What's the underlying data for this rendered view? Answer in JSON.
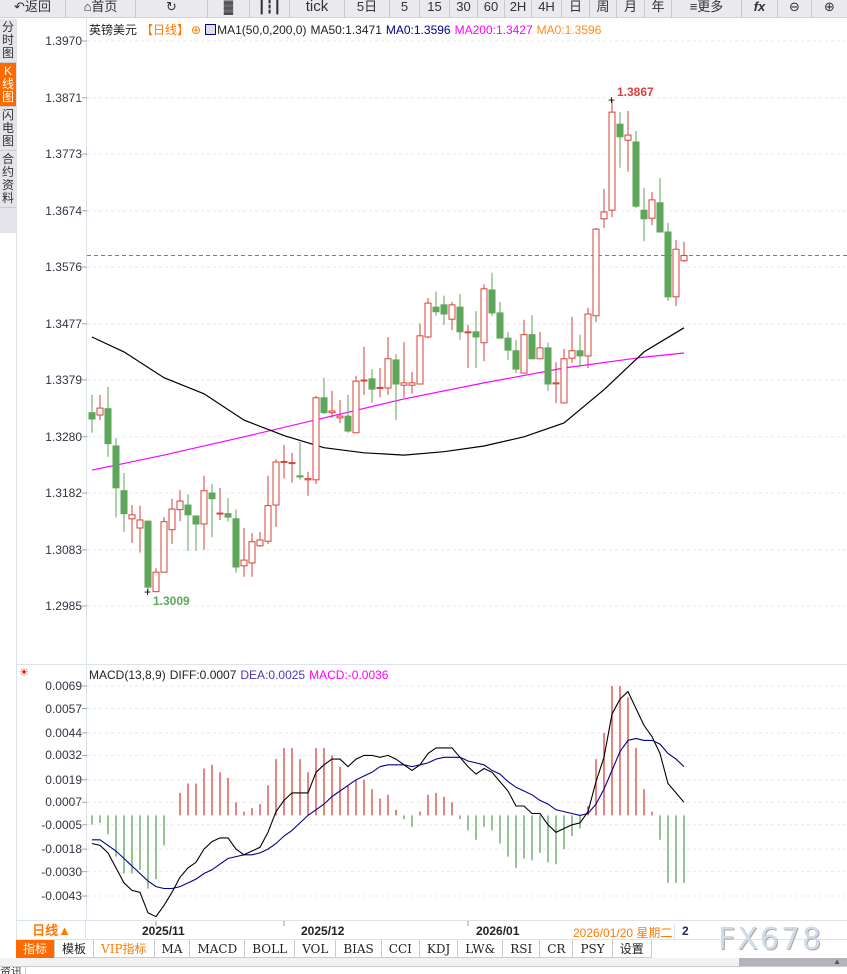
{
  "toolbar": {
    "back": "返回",
    "home": "首页",
    "refresh_icon": "refresh-icon",
    "tick": "tick",
    "periods": [
      "5日",
      "5",
      "15",
      "30",
      "60",
      "2H",
      "4H",
      "日",
      "周",
      "月",
      "年"
    ],
    "more": "更多",
    "fx": "fx"
  },
  "side_tabs": [
    "分时图",
    "K线图",
    "闪电图",
    "合约资料"
  ],
  "legend": {
    "symbol": "英镑美元",
    "period": "【日线】",
    "indicator": "MA1(50,0,200,0)",
    "ma50": "MA50:1.3471",
    "ma0a": "MA0:1.3596",
    "ma200": "MA200:1.3427",
    "ma0b": "MA0:1.3596"
  },
  "macd_legend": {
    "name": "MACD(13,8,9)",
    "diff": "DIFF:0.0007",
    "dea": "DEA:0.0025",
    "macd": "MACD:-0.0036"
  },
  "annotations": {
    "high": "1.3867",
    "low": "1.3009"
  },
  "colors": {
    "up": "#d9413a",
    "down": "#5ea65a",
    "ma50": "#000000",
    "ma200": "#ff00ff",
    "dea": "#00008b",
    "accent": "#ff6a00",
    "last_price": "#1e90ff"
  },
  "date_axis": {
    "period": "日线▲",
    "labels": [
      "2025/11",
      "2025/12",
      "2026/01"
    ],
    "cursor_date": "2026/01/20 星期二",
    "cursor_extra": "2"
  },
  "bottom_tabs": [
    "指标",
    "模板",
    "VIP指标",
    "MA",
    "MACD",
    "BOLL",
    "VOL",
    "BIAS",
    "CCI",
    "KDJ",
    "LW&",
    "RSI",
    "CR",
    "PSY",
    "设置"
  ],
  "watermark": "FX678",
  "news_tab": "资讯",
  "chart_data": [
    {
      "type": "candlestick",
      "title": "英镑美元 日线",
      "y_ticks": [
        "1.3970",
        "1.3871",
        "1.3773",
        "1.3674",
        "1.3576",
        "1.3477",
        "1.3379",
        "1.3280",
        "1.3182",
        "1.3083",
        "1.2985"
      ],
      "ylim": [
        1.2985,
        1.397
      ],
      "last_price": 1.3596,
      "ohlc": [
        [
          1.3322,
          1.3353,
          1.3287,
          1.3311
        ],
        [
          1.3318,
          1.3353,
          1.3309,
          1.333
        ],
        [
          1.3329,
          1.3367,
          1.3245,
          1.3268
        ],
        [
          1.3264,
          1.3278,
          1.3139,
          1.3191
        ],
        [
          1.3186,
          1.3217,
          1.3114,
          1.3146
        ],
        [
          1.3137,
          1.3161,
          1.3095,
          1.3144
        ],
        [
          1.3121,
          1.316,
          1.3078,
          1.3135
        ],
        [
          1.3133,
          1.3133,
          1.3009,
          1.3018
        ],
        [
          1.301,
          1.3051,
          1.3009,
          1.3044
        ],
        [
          1.3044,
          1.314,
          1.3043,
          1.3132
        ],
        [
          1.3118,
          1.3172,
          1.3093,
          1.3154
        ],
        [
          1.3153,
          1.3187,
          1.3133,
          1.3168
        ],
        [
          1.3161,
          1.318,
          1.3081,
          1.3144
        ],
        [
          1.3142,
          1.3142,
          1.3081,
          1.3128
        ],
        [
          1.3128,
          1.3212,
          1.3083,
          1.3186
        ],
        [
          1.3182,
          1.3198,
          1.3105,
          1.3172
        ],
        [
          1.3146,
          1.3191,
          1.3135,
          1.3147
        ],
        [
          1.3146,
          1.3173,
          1.3132,
          1.314
        ],
        [
          1.3137,
          1.3153,
          1.3043,
          1.3053
        ],
        [
          1.3055,
          1.3121,
          1.3036,
          1.3065
        ],
        [
          1.306,
          1.3112,
          1.3036,
          1.3097
        ],
        [
          1.309,
          1.3114,
          1.3088,
          1.31
        ],
        [
          1.3098,
          1.3212,
          1.3093,
          1.316
        ],
        [
          1.3161,
          1.3241,
          1.3123,
          1.3236
        ],
        [
          1.3236,
          1.3266,
          1.3207,
          1.3237
        ],
        [
          1.3234,
          1.3252,
          1.32,
          1.3235
        ],
        [
          1.3212,
          1.3271,
          1.3205,
          1.321
        ],
        [
          1.3205,
          1.3219,
          1.3177,
          1.3207
        ],
        [
          1.3205,
          1.3351,
          1.3198,
          1.3348
        ],
        [
          1.3348,
          1.3383,
          1.332,
          1.3322
        ],
        [
          1.3322,
          1.336,
          1.3313,
          1.3325
        ],
        [
          1.3313,
          1.3344,
          1.3304,
          1.3316
        ],
        [
          1.3316,
          1.3353,
          1.3287,
          1.329
        ],
        [
          1.3287,
          1.3386,
          1.3287,
          1.3377
        ],
        [
          1.3378,
          1.3437,
          1.3353,
          1.3379
        ],
        [
          1.3381,
          1.3398,
          1.3339,
          1.3363
        ],
        [
          1.3365,
          1.34,
          1.3349,
          1.3366
        ],
        [
          1.3365,
          1.3454,
          1.3353,
          1.3416
        ],
        [
          1.3414,
          1.3424,
          1.3309,
          1.3372
        ],
        [
          1.337,
          1.3445,
          1.3348,
          1.3374
        ],
        [
          1.337,
          1.3393,
          1.3355,
          1.3374
        ],
        [
          1.3372,
          1.3477,
          1.3372,
          1.3456
        ],
        [
          1.3454,
          1.3522,
          1.3452,
          1.3513
        ],
        [
          1.3506,
          1.3533,
          1.3491,
          1.3498
        ],
        [
          1.351,
          1.3526,
          1.3475,
          1.3494
        ],
        [
          1.3485,
          1.3515,
          1.3466,
          1.351
        ],
        [
          1.3506,
          1.3529,
          1.3449,
          1.3463
        ],
        [
          1.3462,
          1.3475,
          1.34,
          1.3463
        ],
        [
          1.3463,
          1.3499,
          1.34,
          1.3454
        ],
        [
          1.3444,
          1.3546,
          1.3412,
          1.3538
        ],
        [
          1.3536,
          1.3566,
          1.3491,
          1.3496
        ],
        [
          1.3496,
          1.3515,
          1.3452,
          1.3452
        ],
        [
          1.3452,
          1.3463,
          1.3414,
          1.3431
        ],
        [
          1.343,
          1.3449,
          1.3391,
          1.3398
        ],
        [
          1.3391,
          1.3484,
          1.3391,
          1.3458
        ],
        [
          1.3458,
          1.3492,
          1.3416,
          1.3416
        ],
        [
          1.3416,
          1.3463,
          1.3416,
          1.3435
        ],
        [
          1.3435,
          1.3444,
          1.336,
          1.3372
        ],
        [
          1.3373,
          1.341,
          1.3339,
          1.3374
        ],
        [
          1.3339,
          1.3433,
          1.3339,
          1.3416
        ],
        [
          1.3417,
          1.3489,
          1.3409,
          1.343
        ],
        [
          1.343,
          1.3458,
          1.3402,
          1.3421
        ],
        [
          1.3421,
          1.3505,
          1.34,
          1.3494
        ],
        [
          1.3491,
          1.3644,
          1.348,
          1.3642
        ],
        [
          1.366,
          1.3712,
          1.3644,
          1.3672
        ],
        [
          1.3675,
          1.3867,
          1.3663,
          1.3846
        ],
        [
          1.3825,
          1.3846,
          1.3749,
          1.3803
        ],
        [
          1.3797,
          1.3848,
          1.3742,
          1.3806
        ],
        [
          1.3794,
          1.3813,
          1.3679,
          1.3682
        ],
        [
          1.3675,
          1.3714,
          1.3621,
          1.366
        ],
        [
          1.3661,
          1.3707,
          1.3649,
          1.3693
        ],
        [
          1.3688,
          1.3731,
          1.3637,
          1.3637
        ],
        [
          1.3637,
          1.3653,
          1.3517,
          1.3524
        ],
        [
          1.3524,
          1.3623,
          1.3508,
          1.3607
        ],
        [
          1.3587,
          1.362,
          1.3585,
          1.3596
        ]
      ],
      "ma50": {
        "index": [
          1,
          5,
          10,
          15,
          20,
          25,
          30,
          35,
          40,
          45,
          50,
          55,
          60,
          65,
          70,
          75
        ],
        "values": [
          1.3454,
          1.3428,
          1.3383,
          1.3355,
          1.3309,
          1.3282,
          1.3261,
          1.3252,
          1.3248,
          1.3254,
          1.3264,
          1.328,
          1.3304,
          1.3362,
          1.3428,
          1.347
        ]
      },
      "ma200": {
        "index": [
          1,
          10,
          20,
          30,
          40,
          50,
          60,
          70,
          75
        ],
        "values": [
          1.3222,
          1.3248,
          1.328,
          1.3313,
          1.3346,
          1.3374,
          1.34,
          1.3419,
          1.3426
        ]
      }
    },
    {
      "type": "bar+line",
      "title": "MACD(13,8,9)",
      "y_ticks": [
        "0.0069",
        "0.0057",
        "0.0044",
        "0.0032",
        "0.0019",
        "0.0007",
        "-0.0005",
        "-0.0018",
        "-0.0030",
        "-0.0043"
      ],
      "ylim": [
        -0.005,
        0.0069
      ],
      "histogram": [
        -0.0005,
        -0.0004,
        -0.001,
        -0.0022,
        -0.0031,
        -0.0031,
        -0.0029,
        -0.0039,
        -0.0034,
        -0.0016,
        0.0,
        0.0012,
        0.0017,
        0.0017,
        0.0025,
        0.0027,
        0.0023,
        0.002,
        0.0007,
        0.0002,
        0.0004,
        0.0006,
        0.0016,
        0.003,
        0.0036,
        0.0036,
        0.003,
        0.0023,
        0.0036,
        0.0036,
        0.0032,
        0.0026,
        0.0016,
        0.0019,
        0.0019,
        0.0014,
        0.0009,
        0.0011,
        0.0003,
        -0.0002,
        -0.0006,
        0.0002,
        0.0011,
        0.0012,
        0.001,
        0.0007,
        -0.0002,
        -0.0008,
        -0.0013,
        -0.0006,
        -0.0008,
        -0.0015,
        -0.0022,
        -0.0028,
        -0.0023,
        -0.0024,
        -0.002,
        -0.0025,
        -0.0026,
        -0.0018,
        -0.0011,
        -0.0007,
        0.0005,
        0.003,
        0.0044,
        0.0069,
        0.0069,
        0.0063,
        0.0036,
        0.0014,
        0.0002,
        -0.0013,
        -0.0036,
        -0.0036,
        -0.0036
      ],
      "dif": [
        -0.0015,
        -0.0016,
        -0.002,
        -0.0028,
        -0.0036,
        -0.004,
        -0.0041,
        -0.0052,
        -0.0054,
        -0.0048,
        -0.0041,
        -0.0033,
        -0.0028,
        -0.0025,
        -0.0018,
        -0.0014,
        -0.0012,
        -0.0012,
        -0.0018,
        -0.0021,
        -0.0019,
        -0.0017,
        -0.0009,
        0.0002,
        0.0008,
        0.0012,
        0.0012,
        0.0012,
        0.0023,
        0.0027,
        0.003,
        0.003,
        0.0026,
        0.003,
        0.0032,
        0.0032,
        0.0031,
        0.0032,
        0.003,
        0.0027,
        0.0024,
        0.0027,
        0.0033,
        0.0036,
        0.0036,
        0.0036,
        0.0031,
        0.0026,
        0.0022,
        0.0025,
        0.0023,
        0.0018,
        0.0013,
        0.0005,
        0.0005,
        0.0001,
        0.0001,
        -0.0005,
        -0.0009,
        -0.0007,
        -0.0005,
        -0.0004,
        0.0002,
        0.0018,
        0.0031,
        0.0054,
        0.0062,
        0.0066,
        0.0057,
        0.0048,
        0.0042,
        0.0033,
        0.0017,
        0.0012,
        0.0007
      ],
      "dea": [
        -0.0013,
        -0.0013,
        -0.0016,
        -0.0019,
        -0.0023,
        -0.0027,
        -0.0031,
        -0.0035,
        -0.0038,
        -0.0039,
        -0.0039,
        -0.0038,
        -0.0036,
        -0.0034,
        -0.0031,
        -0.0029,
        -0.0026,
        -0.0023,
        -0.0022,
        -0.0021,
        -0.0021,
        -0.002,
        -0.0018,
        -0.0015,
        -0.0011,
        -0.0008,
        -0.0004,
        0.0,
        0.0003,
        0.0006,
        0.001,
        0.0013,
        0.0016,
        0.0019,
        0.0021,
        0.0023,
        0.0026,
        0.0027,
        0.0027,
        0.0027,
        0.0026,
        0.0027,
        0.0028,
        0.003,
        0.0031,
        0.0031,
        0.0031,
        0.0029,
        0.0028,
        0.0027,
        0.0024,
        0.0022,
        0.0018,
        0.0015,
        0.0013,
        0.0011,
        0.0008,
        0.0006,
        0.0003,
        0.0002,
        0.0001,
        0.0,
        0.0001,
        0.0006,
        0.0014,
        0.0024,
        0.0034,
        0.004,
        0.0041,
        0.004,
        0.004,
        0.0038,
        0.0033,
        0.003,
        0.0026
      ]
    }
  ]
}
